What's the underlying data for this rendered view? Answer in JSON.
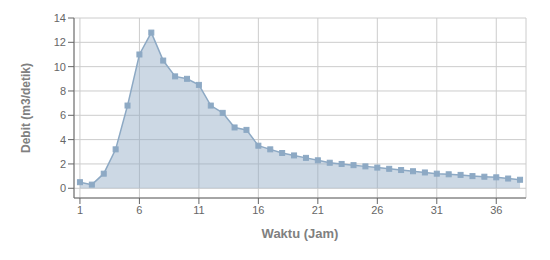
{
  "chart_data": {
    "type": "area",
    "x": [
      1,
      2,
      3,
      4,
      5,
      6,
      7,
      8,
      9,
      10,
      11,
      12,
      13,
      14,
      15,
      16,
      17,
      18,
      19,
      20,
      21,
      22,
      23,
      24,
      25,
      26,
      27,
      28,
      29,
      30,
      31,
      32,
      33,
      34,
      35,
      36,
      37,
      38
    ],
    "values": [
      0.5,
      0.3,
      1.2,
      3.2,
      6.8,
      11.0,
      12.8,
      10.5,
      9.2,
      9.0,
      8.5,
      6.8,
      6.2,
      5.0,
      4.8,
      3.5,
      3.2,
      2.9,
      2.7,
      2.5,
      2.3,
      2.1,
      2.0,
      1.9,
      1.8,
      1.7,
      1.6,
      1.5,
      1.4,
      1.3,
      1.2,
      1.15,
      1.1,
      1.0,
      0.95,
      0.9,
      0.8,
      0.7
    ],
    "color": "#8da9c4",
    "marker": "square",
    "xlabel": "Waktu (Jam)",
    "ylabel": "Debit (m3/detik)",
    "xlim": [
      0.5,
      38.5
    ],
    "ylim": [
      -0.8,
      14
    ],
    "xticks": [
      1,
      6,
      11,
      16,
      21,
      26,
      31,
      36
    ],
    "yticks": [
      0,
      2,
      4,
      6,
      8,
      10,
      12,
      14
    ],
    "grid": true
  }
}
